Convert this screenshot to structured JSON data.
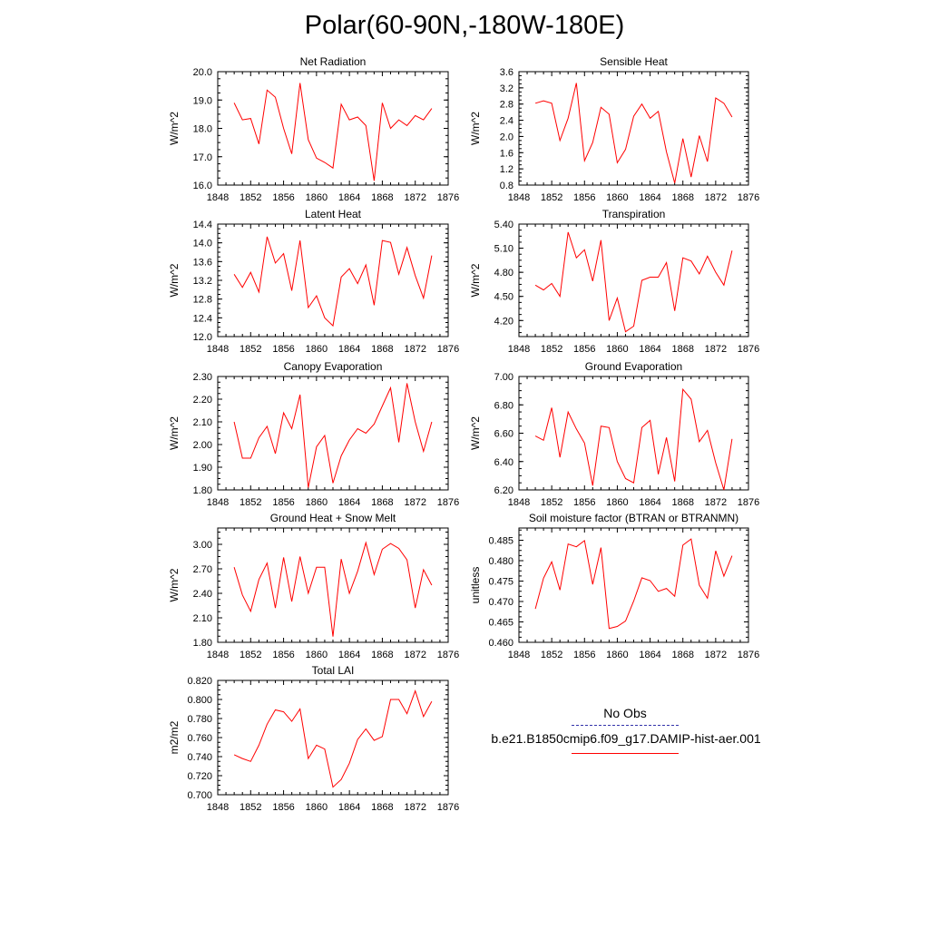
{
  "title": "Polar(60-90N,-180W-180E)",
  "legend": {
    "obs_label": "No Obs",
    "model_label": "b.e21.B1850cmip6.f09_g17.DAMIP-hist-aer.001",
    "obs_color": "#3333aa",
    "model_color": "#ff0000"
  },
  "chart_data": [
    {
      "type": "line",
      "title": "Net Radiation",
      "ylabel": "W/m^2",
      "xlim": [
        1848,
        1876
      ],
      "ylim": [
        16.0,
        20.0
      ],
      "xticks": [
        1848,
        1852,
        1856,
        1860,
        1864,
        1868,
        1872,
        1876
      ],
      "yticks": [
        "16.0",
        "17.0",
        "18.0",
        "19.0",
        "20.0"
      ],
      "series": [
        {
          "color": "#ff0000",
          "x": [
            1850,
            1851,
            1852,
            1853,
            1854,
            1855,
            1856,
            1857,
            1858,
            1859,
            1860,
            1861,
            1862,
            1863,
            1864,
            1865,
            1866,
            1867,
            1868,
            1869,
            1870,
            1871,
            1872,
            1873,
            1874
          ],
          "y": [
            18.9,
            18.3,
            18.35,
            17.45,
            19.35,
            19.1,
            18.0,
            17.1,
            19.6,
            17.6,
            16.95,
            16.8,
            16.6,
            18.85,
            18.3,
            18.4,
            18.1,
            16.15,
            18.9,
            18.0,
            18.3,
            18.1,
            18.45,
            18.3,
            18.7
          ]
        }
      ]
    },
    {
      "type": "line",
      "title": "Sensible Heat",
      "ylabel": "W/m^2",
      "xlim": [
        1848,
        1876
      ],
      "ylim": [
        0.8,
        3.6
      ],
      "xticks": [
        1848,
        1852,
        1856,
        1860,
        1864,
        1868,
        1872,
        1876
      ],
      "yticks": [
        "0.8",
        "1.2",
        "1.6",
        "2.0",
        "2.4",
        "2.8",
        "3.2",
        "3.6"
      ],
      "series": [
        {
          "color": "#ff0000",
          "x": [
            1850,
            1851,
            1852,
            1853,
            1854,
            1855,
            1856,
            1857,
            1858,
            1859,
            1860,
            1861,
            1862,
            1863,
            1864,
            1865,
            1866,
            1867,
            1868,
            1869,
            1870,
            1871,
            1872,
            1873,
            1874
          ],
          "y": [
            2.82,
            2.88,
            2.82,
            1.9,
            2.45,
            3.32,
            1.4,
            1.85,
            2.72,
            2.55,
            1.35,
            1.68,
            2.5,
            2.8,
            2.45,
            2.62,
            1.62,
            0.85,
            1.95,
            1.0,
            2.02,
            1.38,
            2.95,
            2.82,
            2.48
          ]
        }
      ]
    },
    {
      "type": "line",
      "title": "Latent Heat",
      "ylabel": "W/m^2",
      "xlim": [
        1848,
        1876
      ],
      "ylim": [
        12.0,
        14.4
      ],
      "xticks": [
        1848,
        1852,
        1856,
        1860,
        1864,
        1868,
        1872,
        1876
      ],
      "yticks": [
        "12.0",
        "12.4",
        "12.8",
        "13.2",
        "13.6",
        "14.0",
        "14.4"
      ],
      "series": [
        {
          "color": "#ff0000",
          "x": [
            1850,
            1851,
            1852,
            1853,
            1854,
            1855,
            1856,
            1857,
            1858,
            1859,
            1860,
            1861,
            1862,
            1863,
            1864,
            1865,
            1866,
            1867,
            1868,
            1869,
            1870,
            1871,
            1872,
            1873,
            1874
          ],
          "y": [
            13.33,
            13.05,
            13.37,
            12.95,
            14.13,
            13.57,
            13.77,
            12.98,
            14.05,
            12.62,
            12.87,
            12.4,
            12.23,
            13.27,
            13.45,
            13.13,
            13.53,
            12.67,
            14.05,
            14.01,
            13.33,
            13.9,
            13.3,
            12.82,
            13.73
          ]
        }
      ]
    },
    {
      "type": "line",
      "title": "Transpiration",
      "ylabel": "W/m^2",
      "xlim": [
        1848,
        1876
      ],
      "ylim": [
        4.0,
        5.4
      ],
      "xticks": [
        1848,
        1852,
        1856,
        1860,
        1864,
        1868,
        1872,
        1876
      ],
      "yticks": [
        "4.20",
        "4.50",
        "4.80",
        "5.10",
        "5.40"
      ],
      "series": [
        {
          "color": "#ff0000",
          "x": [
            1850,
            1851,
            1852,
            1853,
            1854,
            1855,
            1856,
            1857,
            1858,
            1859,
            1860,
            1861,
            1862,
            1863,
            1864,
            1865,
            1866,
            1867,
            1868,
            1869,
            1870,
            1871,
            1872,
            1873,
            1874
          ],
          "y": [
            4.64,
            4.58,
            4.66,
            4.5,
            5.3,
            4.98,
            5.08,
            4.69,
            5.2,
            4.2,
            4.48,
            4.06,
            4.13,
            4.7,
            4.74,
            4.74,
            4.92,
            4.32,
            4.98,
            4.94,
            4.78,
            5.0,
            4.8,
            4.64,
            5.07
          ]
        }
      ]
    },
    {
      "type": "line",
      "title": "Canopy Evaporation",
      "ylabel": "W/m^2",
      "xlim": [
        1848,
        1876
      ],
      "ylim": [
        1.8,
        2.3
      ],
      "xticks": [
        1848,
        1852,
        1856,
        1860,
        1864,
        1868,
        1872,
        1876
      ],
      "yticks": [
        "1.80",
        "1.90",
        "2.00",
        "2.10",
        "2.20",
        "2.30"
      ],
      "series": [
        {
          "color": "#ff0000",
          "x": [
            1850,
            1851,
            1852,
            1853,
            1854,
            1855,
            1856,
            1857,
            1858,
            1859,
            1860,
            1861,
            1862,
            1863,
            1864,
            1865,
            1866,
            1867,
            1868,
            1869,
            1870,
            1871,
            1872,
            1873,
            1874
          ],
          "y": [
            2.1,
            1.94,
            1.94,
            2.03,
            2.08,
            1.96,
            2.14,
            2.07,
            2.22,
            1.81,
            1.99,
            2.04,
            1.83,
            1.95,
            2.02,
            2.07,
            2.05,
            2.09,
            2.17,
            2.25,
            2.01,
            2.27,
            2.1,
            1.97,
            2.1
          ]
        }
      ]
    },
    {
      "type": "line",
      "title": "Ground Evaporation",
      "ylabel": "W/m^2",
      "xlim": [
        1848,
        1876
      ],
      "ylim": [
        6.2,
        7.0
      ],
      "xticks": [
        1848,
        1852,
        1856,
        1860,
        1864,
        1868,
        1872,
        1876
      ],
      "yticks": [
        "6.20",
        "6.40",
        "6.60",
        "6.80",
        "7.00"
      ],
      "series": [
        {
          "color": "#ff0000",
          "x": [
            1850,
            1851,
            1852,
            1853,
            1854,
            1855,
            1856,
            1857,
            1858,
            1859,
            1860,
            1861,
            1862,
            1863,
            1864,
            1865,
            1866,
            1867,
            1868,
            1869,
            1870,
            1871,
            1872,
            1873,
            1874
          ],
          "y": [
            6.58,
            6.55,
            6.78,
            6.43,
            6.75,
            6.63,
            6.53,
            6.23,
            6.65,
            6.64,
            6.4,
            6.28,
            6.25,
            6.64,
            6.69,
            6.31,
            6.57,
            6.26,
            6.91,
            6.84,
            6.54,
            6.62,
            6.39,
            6.2,
            6.56
          ]
        }
      ]
    },
    {
      "type": "line",
      "title": "Ground Heat + Snow Melt",
      "ylabel": "W/m^2",
      "xlim": [
        1848,
        1876
      ],
      "ylim": [
        1.8,
        3.2
      ],
      "xticks": [
        1848,
        1852,
        1856,
        1860,
        1864,
        1868,
        1872,
        1876
      ],
      "yticks": [
        "1.80",
        "2.10",
        "2.40",
        "2.70",
        "3.00"
      ],
      "series": [
        {
          "color": "#ff0000",
          "x": [
            1850,
            1851,
            1852,
            1853,
            1854,
            1855,
            1856,
            1857,
            1858,
            1859,
            1860,
            1861,
            1862,
            1863,
            1864,
            1865,
            1866,
            1867,
            1868,
            1869,
            1870,
            1871,
            1872,
            1873,
            1874
          ],
          "y": [
            2.72,
            2.38,
            2.18,
            2.57,
            2.77,
            2.22,
            2.84,
            2.3,
            2.85,
            2.4,
            2.72,
            2.72,
            1.87,
            2.82,
            2.4,
            2.67,
            3.02,
            2.63,
            2.94,
            3.01,
            2.95,
            2.81,
            2.22,
            2.69,
            2.5
          ]
        }
      ]
    },
    {
      "type": "line",
      "title": "Soil moisture factor (BTRAN or BTRANMN)",
      "ylabel": "unitless",
      "xlim": [
        1848,
        1876
      ],
      "ylim": [
        0.46,
        0.488
      ],
      "xticks": [
        1848,
        1852,
        1856,
        1860,
        1864,
        1868,
        1872,
        1876
      ],
      "yticks": [
        "0.460",
        "0.465",
        "0.470",
        "0.475",
        "0.480",
        "0.485"
      ],
      "series": [
        {
          "color": "#ff0000",
          "x": [
            1850,
            1851,
            1852,
            1853,
            1854,
            1855,
            1856,
            1857,
            1858,
            1859,
            1860,
            1861,
            1862,
            1863,
            1864,
            1865,
            1866,
            1867,
            1868,
            1869,
            1870,
            1871,
            1872,
            1873,
            1874
          ],
          "y": [
            0.4682,
            0.4757,
            0.4797,
            0.4728,
            0.4841,
            0.4834,
            0.4849,
            0.4742,
            0.4832,
            0.4634,
            0.4639,
            0.4652,
            0.4701,
            0.4758,
            0.4751,
            0.4725,
            0.4732,
            0.4713,
            0.4838,
            0.4853,
            0.474,
            0.4708,
            0.4824,
            0.4762,
            0.4812
          ]
        }
      ]
    },
    {
      "type": "line",
      "title": "Total LAI",
      "ylabel": "m2/m2",
      "xlim": [
        1848,
        1876
      ],
      "ylim": [
        0.7,
        0.82
      ],
      "xticks": [
        1848,
        1852,
        1856,
        1860,
        1864,
        1868,
        1872,
        1876
      ],
      "yticks": [
        "0.700",
        "0.720",
        "0.740",
        "0.760",
        "0.780",
        "0.800",
        "0.820"
      ],
      "series": [
        {
          "color": "#ff0000",
          "x": [
            1850,
            1851,
            1852,
            1853,
            1854,
            1855,
            1856,
            1857,
            1858,
            1859,
            1860,
            1861,
            1862,
            1863,
            1864,
            1865,
            1866,
            1867,
            1868,
            1869,
            1870,
            1871,
            1872,
            1873,
            1874
          ],
          "y": [
            0.742,
            0.738,
            0.735,
            0.752,
            0.774,
            0.789,
            0.787,
            0.777,
            0.79,
            0.738,
            0.752,
            0.748,
            0.708,
            0.716,
            0.733,
            0.758,
            0.769,
            0.757,
            0.761,
            0.8,
            0.8,
            0.785,
            0.809,
            0.782,
            0.798
          ]
        }
      ]
    }
  ]
}
